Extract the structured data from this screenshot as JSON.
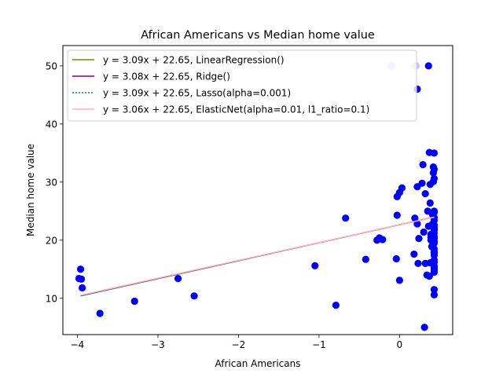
{
  "chart_data": {
    "type": "scatter",
    "title": "African Americans vs Median home value",
    "xlabel": "African Americans",
    "ylabel": "Median home value",
    "xlim": [
      -4.18,
      0.66
    ],
    "ylim": [
      3.75,
      53.5
    ],
    "xticks": [
      -4,
      -3,
      -2,
      -1,
      0
    ],
    "xtick_labels": [
      "−4",
      "−3",
      "−2",
      "−1",
      "0"
    ],
    "yticks": [
      10,
      20,
      30,
      40,
      50
    ],
    "ytick_labels": [
      "10",
      "20",
      "30",
      "40",
      "50"
    ],
    "grid": false,
    "legend_position": "upper-left",
    "point_color": "#0000ff",
    "points": [
      [
        -3.96,
        15.0
      ],
      [
        -3.98,
        13.4
      ],
      [
        -3.95,
        13.3
      ],
      [
        -3.94,
        11.8
      ],
      [
        -3.72,
        7.4
      ],
      [
        -3.29,
        9.5
      ],
      [
        -2.75,
        13.4
      ],
      [
        -2.55,
        10.4
      ],
      [
        -1.05,
        15.6
      ],
      [
        -0.79,
        8.8
      ],
      [
        -0.67,
        23.8
      ],
      [
        -0.42,
        16.7
      ],
      [
        -0.28,
        20.0
      ],
      [
        -0.25,
        20.4
      ],
      [
        -0.21,
        20.1
      ],
      [
        -0.1,
        50.0
      ],
      [
        -0.04,
        16.8
      ],
      [
        -0.03,
        24.3
      ],
      [
        -0.03,
        27.5
      ],
      [
        0.0,
        28.2
      ],
      [
        0.0,
        13.1
      ],
      [
        0.03,
        29.0
      ],
      [
        0.18,
        17.6
      ],
      [
        0.19,
        23.8
      ],
      [
        0.2,
        50.0
      ],
      [
        0.22,
        46.0
      ],
      [
        0.22,
        29.2
      ],
      [
        0.22,
        22.8
      ],
      [
        0.23,
        16.0
      ],
      [
        0.24,
        20.3
      ],
      [
        0.28,
        29.8
      ],
      [
        0.29,
        33.0
      ],
      [
        0.3,
        21.4
      ],
      [
        0.31,
        5.0
      ],
      [
        0.32,
        16.0
      ],
      [
        0.32,
        28.0
      ],
      [
        0.34,
        14.0
      ],
      [
        0.35,
        25.0
      ],
      [
        0.36,
        50.0
      ],
      [
        0.36,
        22.4
      ],
      [
        0.37,
        13.8
      ],
      [
        0.37,
        35.1
      ],
      [
        0.38,
        26.4
      ],
      [
        0.38,
        29.6
      ],
      [
        0.38,
        16.1
      ],
      [
        0.39,
        21.0
      ],
      [
        0.39,
        20.5
      ],
      [
        0.39,
        20.0
      ],
      [
        0.4,
        18.9
      ],
      [
        0.41,
        22.8
      ],
      [
        0.41,
        24.4
      ],
      [
        0.42,
        31.6
      ],
      [
        0.42,
        32.6
      ],
      [
        0.42,
        30.1
      ],
      [
        0.42,
        19.3
      ],
      [
        0.43,
        17.8
      ],
      [
        0.43,
        15.2
      ],
      [
        0.43,
        14.5
      ],
      [
        0.43,
        23.4
      ],
      [
        0.43,
        25.0
      ],
      [
        0.43,
        35.0
      ],
      [
        0.43,
        32.2
      ],
      [
        0.43,
        30.6
      ],
      [
        0.43,
        24.8
      ],
      [
        0.43,
        22.2
      ],
      [
        0.43,
        21.7
      ],
      [
        0.43,
        21.2
      ],
      [
        0.43,
        20.6
      ],
      [
        0.43,
        19.8
      ],
      [
        0.43,
        19.5
      ],
      [
        0.43,
        18.5
      ],
      [
        0.43,
        18.0
      ],
      [
        0.43,
        17.4
      ],
      [
        0.43,
        16.6
      ],
      [
        0.43,
        16.2
      ],
      [
        0.43,
        15.6
      ],
      [
        0.43,
        14.9
      ],
      [
        0.43,
        11.5
      ],
      [
        0.43,
        10.6
      ],
      [
        0.43,
        23.9
      ],
      [
        0.43,
        22.6
      ],
      [
        0.43,
        21.9
      ],
      [
        0.43,
        20.3
      ]
    ],
    "highlighted_points": [
      [
        -0.1,
        50.0
      ],
      [
        0.2,
        50.0
      ]
    ],
    "highlighted_point_color": "#c8c8f8",
    "line_x_range": [
      -3.96,
      0.43
    ],
    "series": [
      {
        "name": "y = 3.09x + 22.65, LinearRegression()",
        "slope": 3.09,
        "intercept": 22.65,
        "color": "#808000",
        "dashed": false
      },
      {
        "name": "y = 3.08x + 22.65, Ridge()",
        "slope": 3.08,
        "intercept": 22.65,
        "color": "#800080",
        "dashed": false
      },
      {
        "name": "y = 3.09x + 22.65, Lasso(alpha=0.001)",
        "slope": 3.09,
        "intercept": 22.65,
        "color": "#008080",
        "dashed": true
      },
      {
        "name": "y = 3.06x + 22.65, ElasticNet(alpha=0.01, l1_ratio=0.1)",
        "slope": 3.06,
        "intercept": 22.65,
        "color": "#ffb6c1",
        "dashed": false
      }
    ]
  }
}
